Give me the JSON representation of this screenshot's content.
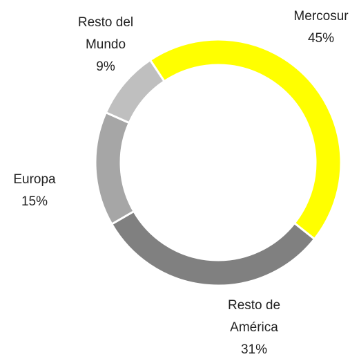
{
  "chart_data": {
    "type": "donut",
    "categories": [
      "Mercosur",
      "Resto de América",
      "Europa",
      "Resto del Mundo"
    ],
    "values": [
      45,
      31,
      15,
      9
    ],
    "value_labels": [
      "45%",
      "31%",
      "15%",
      "9%"
    ],
    "colors": [
      "#ffff00",
      "#808080",
      "#a6a6a6",
      "#bfbfbf"
    ]
  }
}
